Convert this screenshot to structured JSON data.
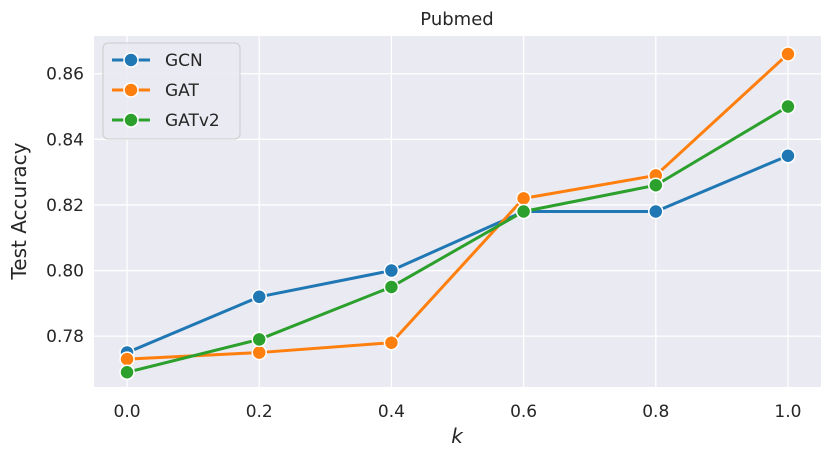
{
  "chart_data": {
    "type": "line",
    "title": "Pubmed",
    "xlabel": "k",
    "ylabel": "Test Accuracy",
    "x": [
      0.0,
      0.2,
      0.4,
      0.6,
      0.8,
      1.0
    ],
    "x_tick_labels": [
      "0.0",
      "0.2",
      "0.4",
      "0.6",
      "0.8",
      "1.0"
    ],
    "y_ticks": [
      0.78,
      0.8,
      0.82,
      0.84,
      0.86
    ],
    "y_tick_labels": [
      "0.78",
      "0.80",
      "0.82",
      "0.84",
      "0.86"
    ],
    "xlim": [
      -0.05,
      1.05
    ],
    "ylim": [
      0.7645,
      0.8715
    ],
    "grid": true,
    "legend_position": "top-left",
    "series": [
      {
        "name": "GCN",
        "color": "#1f77b4",
        "values": [
          0.775,
          0.792,
          0.8,
          0.818,
          0.818,
          0.835
        ]
      },
      {
        "name": "GAT",
        "color": "#ff7f0e",
        "values": [
          0.773,
          0.775,
          0.778,
          0.822,
          0.829,
          0.866
        ]
      },
      {
        "name": "GATv2",
        "color": "#2ca02c",
        "values": [
          0.769,
          0.779,
          0.795,
          0.818,
          0.826,
          0.85
        ]
      }
    ]
  }
}
